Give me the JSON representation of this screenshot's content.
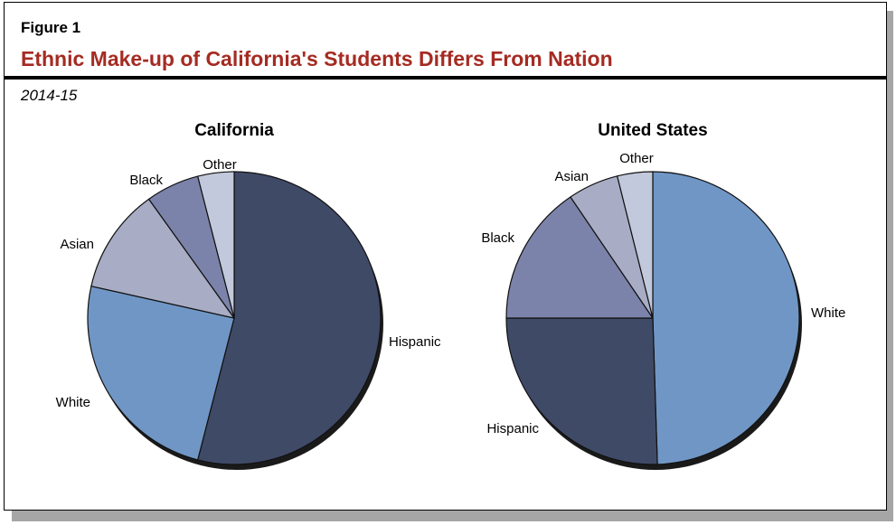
{
  "figure": {
    "label": "Figure 1",
    "title": "Ethnic Make-up of California's Students Differs From Nation",
    "subtitle": "2014-15"
  },
  "colors": {
    "title": "#a52b22",
    "Hispanic": "#3f4a67",
    "White": "#7096c5",
    "Asian": "#a8adc5",
    "Black": "#7c83aa",
    "Other": "#c2c9dc"
  },
  "chart_data": [
    {
      "type": "pie",
      "title": "California",
      "slices": [
        {
          "label": "Hispanic",
          "value": 54
        },
        {
          "label": "White",
          "value": 24.5
        },
        {
          "label": "Asian",
          "value": 11.6
        },
        {
          "label": "Black",
          "value": 5.9
        },
        {
          "label": "Other",
          "value": 4
        }
      ]
    },
    {
      "type": "pie",
      "title": "United States",
      "slices": [
        {
          "label": "White",
          "value": 49.5
        },
        {
          "label": "Hispanic",
          "value": 25.5
        },
        {
          "label": "Black",
          "value": 15.5
        },
        {
          "label": "Asian",
          "value": 5.6
        },
        {
          "label": "Other",
          "value": 3.9
        }
      ]
    }
  ]
}
